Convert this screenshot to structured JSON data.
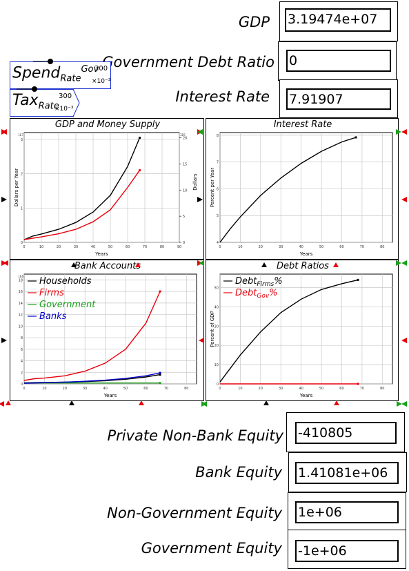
{
  "variables": {
    "gdp": {
      "label": "GDP",
      "value": "3.19474e+07"
    },
    "debt_ratio": {
      "label": "Government Debt Ratio",
      "value": "0"
    },
    "interest": {
      "label": "Interest Rate",
      "value": "7.91907"
    },
    "private_equity": {
      "label": "Private Non-Bank Equity",
      "value": "-410805"
    },
    "bank_equity": {
      "label": "Bank Equity",
      "value": "1.41081e+06"
    },
    "nongov_equity": {
      "label": "Non-Government Equity",
      "value": "1e+06"
    },
    "gov_equity": {
      "label": "Government Equity",
      "value": "-1e+06"
    }
  },
  "params": {
    "spend": {
      "main": "Spend",
      "sub": "Rate",
      "sup": "Gov",
      "value": "300",
      "scale": "×10⁻³"
    },
    "tax": {
      "main": "Tax",
      "sub": "Rate",
      "value": "300",
      "scale": "×10⁻³"
    }
  },
  "colors": {
    "black": "#000000",
    "red": "#e8000b",
    "green": "#1aa01a",
    "blue": "#0000cc",
    "param_border": "#1a2fd0"
  },
  "chart_data": [
    {
      "type": "line",
      "title": "GDP and Money Supply",
      "xlabel": "Years",
      "ylabel": "Dollars per Year",
      "y2label": "Dollars",
      "xticks": [
        "0",
        "10",
        "20",
        "30",
        "40",
        "50",
        "60",
        "70",
        "80",
        "90"
      ],
      "yticks": [
        "0",
        "1",
        "2",
        "3"
      ],
      "y2ticks": [
        "0",
        "5",
        "10",
        "15",
        "20"
      ],
      "yexp": "1E7",
      "y2exp": "1E6",
      "xlim": [
        0,
        90
      ],
      "ylim": [
        0,
        3.2
      ],
      "y2lim": [
        0,
        21
      ],
      "grid": true,
      "series": [
        {
          "color": "#000000",
          "x": [
            0,
            5,
            10,
            20,
            30,
            40,
            50,
            60,
            67
          ],
          "y": [
            0.5,
            1.2,
            1.6,
            2.5,
            3.8,
            5.8,
            9.0,
            14.5,
            20.0
          ],
          "axis": "y2"
        },
        {
          "color": "#e8000b",
          "x": [
            0,
            5,
            10,
            20,
            30,
            40,
            50,
            60,
            67
          ],
          "y": [
            0.08,
            0.12,
            0.16,
            0.25,
            0.38,
            0.6,
            0.95,
            1.6,
            2.1
          ],
          "axis": "y"
        }
      ]
    },
    {
      "type": "line",
      "title": "Interest Rate",
      "xlabel": "Years",
      "ylabel": "Percent per Year",
      "xticks": [
        "0",
        "10",
        "20",
        "30",
        "40",
        "50",
        "60",
        "70",
        "80"
      ],
      "yticks": [
        "4",
        "5",
        "6",
        "7",
        "8"
      ],
      "xlim": [
        0,
        85
      ],
      "ylim": [
        4,
        8.1
      ],
      "grid": true,
      "series": [
        {
          "color": "#000000",
          "x": [
            0,
            5,
            10,
            20,
            30,
            40,
            50,
            60,
            67
          ],
          "y": [
            4.0,
            4.5,
            4.95,
            5.75,
            6.4,
            6.95,
            7.4,
            7.75,
            7.92
          ]
        }
      ]
    },
    {
      "type": "line",
      "title": "Bank Accounts",
      "xlabel": "Years",
      "xticks": [
        "0",
        "10",
        "20",
        "30",
        "40",
        "50",
        "60",
        "70",
        "80"
      ],
      "yticks": [
        "0",
        "2",
        "4",
        "6",
        "8",
        "10",
        "12",
        "14",
        "16",
        "18"
      ],
      "yexp": "1E6",
      "xlim": [
        0,
        85
      ],
      "ylim": [
        0,
        19
      ],
      "grid": true,
      "legend": [
        "Households",
        "Firms",
        "Government",
        "Banks"
      ],
      "series": [
        {
          "name": "Households",
          "color": "#000000",
          "x": [
            0,
            10,
            20,
            30,
            40,
            50,
            60,
            67
          ],
          "y": [
            0.2,
            0.25,
            0.3,
            0.4,
            0.55,
            0.8,
            1.2,
            1.6
          ]
        },
        {
          "name": "Firms",
          "color": "#e8000b",
          "x": [
            0,
            5,
            10,
            20,
            30,
            40,
            50,
            60,
            67
          ],
          "y": [
            0.6,
            0.9,
            1.0,
            1.4,
            2.2,
            3.6,
            6.0,
            10.5,
            16.0
          ]
        },
        {
          "name": "Government",
          "color": "#1aa01a",
          "x": [
            0,
            10,
            20,
            30,
            40,
            50,
            60,
            67
          ],
          "y": [
            0.15,
            0.15,
            0.15,
            0.15,
            0.15,
            0.15,
            0.15,
            0.15
          ]
        },
        {
          "name": "Banks",
          "color": "#0000cc",
          "x": [
            0,
            10,
            20,
            30,
            40,
            50,
            60,
            67
          ],
          "y": [
            0.1,
            0.2,
            0.3,
            0.45,
            0.65,
            0.95,
            1.4,
            1.9
          ]
        }
      ]
    },
    {
      "type": "line",
      "title": "Debt Ratios",
      "xlabel": "Years",
      "ylabel": "Percent of GDP",
      "xticks": [
        "0",
        "10",
        "20",
        "30",
        "40",
        "50",
        "60",
        "70",
        "80"
      ],
      "yticks": [
        "0",
        "10",
        "20",
        "30",
        "40",
        "50"
      ],
      "xlim": [
        0,
        85
      ],
      "ylim": [
        0,
        57
      ],
      "grid": true,
      "legend": [
        "Debt_Firms%",
        "Debt_Gov%"
      ],
      "series": [
        {
          "name": "DebtFirms%",
          "color": "#000000",
          "x": [
            0,
            5,
            10,
            20,
            30,
            40,
            50,
            60,
            68
          ],
          "y": [
            1,
            8,
            15,
            27,
            37,
            44,
            49,
            52,
            54
          ]
        },
        {
          "name": "DebtGov%",
          "color": "#e8000b",
          "x": [
            0,
            68
          ],
          "y": [
            0,
            0
          ]
        }
      ]
    }
  ]
}
